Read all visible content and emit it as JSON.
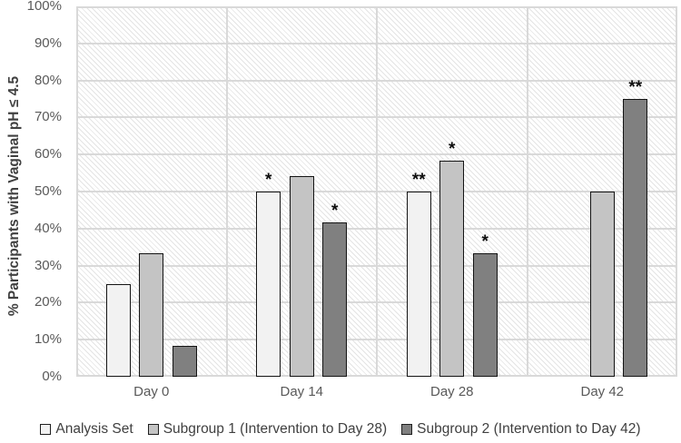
{
  "chart_data": {
    "type": "bar",
    "title": "",
    "xlabel": "",
    "ylabel": "% Participants with Vaginal pH ≤ 4.5",
    "categories": [
      "Day 0",
      "Day 14",
      "Day 28",
      "Day 42"
    ],
    "series": [
      {
        "name": "Analysis Set",
        "fill": "#f2f2f2",
        "values": [
          25,
          50,
          50,
          null
        ],
        "annotations": [
          "",
          "*",
          "**",
          ""
        ]
      },
      {
        "name": "Subgroup 1 (Intervention to Day 28)",
        "fill": "#c4c4c4",
        "values": [
          33.3,
          54.2,
          58.3,
          50
        ],
        "annotations": [
          "",
          "",
          "*",
          ""
        ]
      },
      {
        "name": "Subgroup 2 (Intervention to Day 42)",
        "fill": "#808080",
        "values": [
          8.3,
          41.7,
          33.3,
          75
        ],
        "annotations": [
          "",
          "*",
          "*",
          "**"
        ]
      }
    ],
    "ylim": [
      0,
      100
    ],
    "ytick_step": 10,
    "ytick_labels": [
      "0%",
      "10%",
      "20%",
      "30%",
      "40%",
      "50%",
      "60%",
      "70%",
      "80%",
      "90%",
      "100%"
    ],
    "grid": true,
    "plot_background": "hatched-diagonal",
    "legend_position": "bottom",
    "colors": {
      "gridline": "#d9d9d9",
      "bar_border": "#141414",
      "axis_text": "#595959",
      "axis_title_text": "#404040",
      "legend_text": "#404040",
      "annotation_text": "#0d0d0d"
    }
  }
}
